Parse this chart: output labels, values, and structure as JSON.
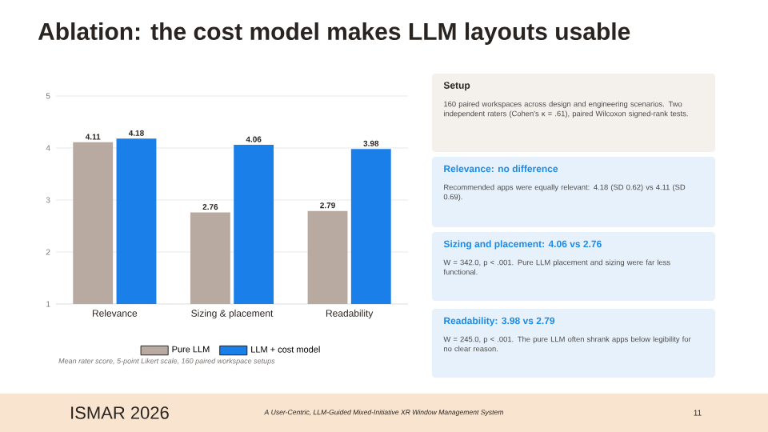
{
  "chart_data": [
    {
      "type": "bar",
      "title": "Ablation: the cost model makes LLM layouts usable",
      "categories": [
        "Relevance",
        "Sizing & placement",
        "Readability"
      ],
      "series": [
        {
          "name": "Pure LLM",
          "color": "#b8aaa0",
          "values": [
            4.11,
            2.76,
            2.79
          ]
        },
        {
          "name": "LLM + cost model",
          "color": "#1a7fe8",
          "values": [
            4.18,
            4.06,
            3.98
          ]
        }
      ],
      "ylim": [
        1,
        5
      ],
      "yticks": [
        1,
        2,
        3,
        4,
        5
      ],
      "grid": "y",
      "legend": "bottom",
      "data_labels": true,
      "annotations": [
        "Mean rater score, 5-point Likert scale, 160 paired workspace setups"
      ]
    },
    {
      "type": "other",
      "annotations": [
        "Setup",
        "160 paired workspaces across design and engineering scenarios. Two independent raters (Cohen's κ = .61), paired Wilcoxon signed-rank tests.",
        "Relevance: no difference",
        "Recommended apps were equally relevant: 4.18 (SD 0.62) vs 4.11 (SD 0.69).",
        "Sizing and placement: 4.06 vs 2.76",
        "W = 342.0, p < .001. Pure LLM placement and sizing were far less functional.",
        "Readability: 3.98 vs 2.79",
        "W = 245.0, p < .001. The pure LLM often shrank apps below legibility for no clear reason.",
        "ISMAR 2026",
        "A User-Centric, LLM-Guided Mixed-Initiative XR Window Management System",
        "11"
      ]
    }
  ]
}
